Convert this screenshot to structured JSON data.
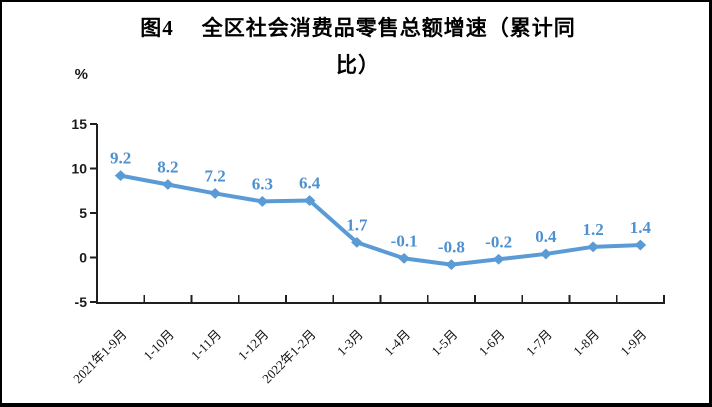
{
  "frame": {
    "background": "#ffffff",
    "border_color": "#000000"
  },
  "title": {
    "prefix": "图4",
    "line1_rest": "全区社会消费品零售总额增速（累计同",
    "line2": "比）"
  },
  "chart_data": {
    "type": "line",
    "title": "图4 全区社会消费品零售总额增速（累计同比）",
    "unit_label": "%",
    "categories": [
      "2021年1-9月",
      "1-10月",
      "1-11月",
      "1-12月",
      "2022年1-2月",
      "1-3月",
      "1-4月",
      "1-5月",
      "1-6月",
      "1-7月",
      "1-8月",
      "1-9月"
    ],
    "values": [
      9.2,
      8.2,
      7.2,
      6.3,
      6.4,
      1.7,
      -0.1,
      -0.8,
      -0.2,
      0.4,
      1.2,
      1.4
    ],
    "data_labels": [
      "9.2",
      "8.2",
      "7.2",
      "6.3",
      "6.4",
      "1.7",
      "-0.1",
      "-0.8",
      "-0.2",
      "0.4",
      "1.2",
      "1.4"
    ],
    "ylim": [
      -5,
      15
    ],
    "yticks": [
      15,
      10,
      5,
      0,
      -5
    ],
    "grid": false,
    "legend": "none",
    "marker": "diamond",
    "x_label_rotation_deg": -45,
    "colors": {
      "line": "#5B9BD5",
      "marker": "#5B9BD5",
      "data_label": "#4E91D0",
      "axis": "#1f1f1f"
    }
  }
}
